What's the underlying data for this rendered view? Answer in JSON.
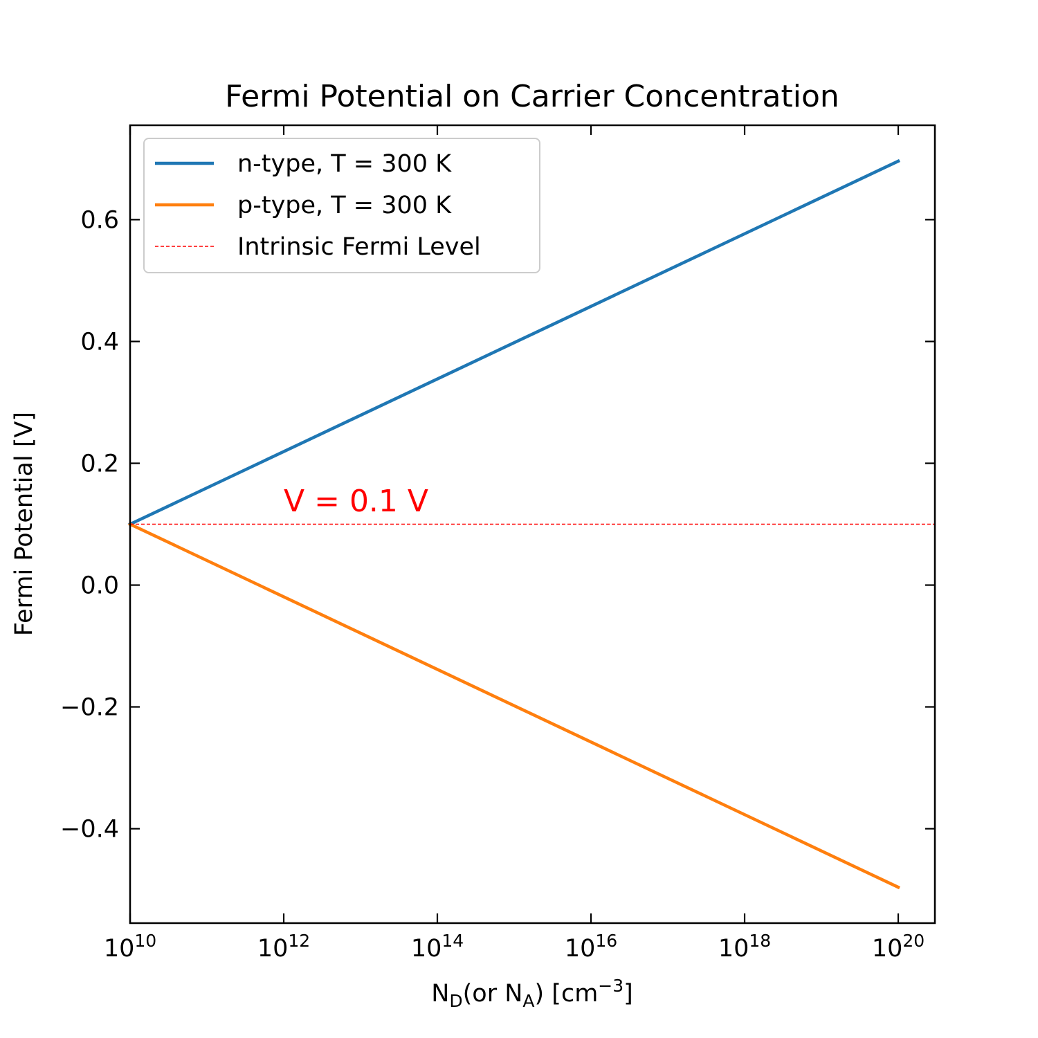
{
  "chart_data": {
    "type": "line",
    "title": "Fermi Potential on Carrier Concentration",
    "xlabel": {
      "parts": [
        {
          "text": "N",
          "sub": false
        },
        {
          "text": "D",
          "sub": true
        },
        {
          "text": "(or N",
          "sub": false
        },
        {
          "text": "A",
          "sub": true
        },
        {
          "text": ") [cm",
          "sub": false
        },
        {
          "text": "−3",
          "sup": true
        },
        {
          "text": "]",
          "sub": false
        }
      ]
    },
    "ylabel": "Fermi Potential [V]",
    "x_scale": "log",
    "xlim": [
      10000000000.0,
      3e+20
    ],
    "ylim": [
      -0.555,
      0.755
    ],
    "x_ticks": [
      {
        "base": "10",
        "exp": "10",
        "value": 10000000000.0
      },
      {
        "base": "10",
        "exp": "12",
        "value": 1000000000000.0
      },
      {
        "base": "10",
        "exp": "14",
        "value": 100000000000000.0
      },
      {
        "base": "10",
        "exp": "16",
        "value": 1e+16
      },
      {
        "base": "10",
        "exp": "18",
        "value": 1e+18
      },
      {
        "base": "10",
        "exp": "20",
        "value": 1e+20
      }
    ],
    "y_ticks": [
      {
        "label": "−0.4",
        "value": -0.4
      },
      {
        "label": "−0.2",
        "value": -0.2
      },
      {
        "label": "0.0",
        "value": 0.0
      },
      {
        "label": "0.2",
        "value": 0.2
      },
      {
        "label": "0.4",
        "value": 0.4
      },
      {
        "label": "0.6",
        "value": 0.6
      }
    ],
    "grid": false,
    "legend_position": "top-left",
    "series": [
      {
        "name": "n-type, T = 300 K",
        "color": "#1f77b4",
        "style": "solid",
        "x": [
          10000000000.0,
          1e+20
        ],
        "y": [
          0.1,
          0.696
        ]
      },
      {
        "name": "p-type, T = 300 K",
        "color": "#ff7f0e",
        "style": "solid",
        "x": [
          10000000000.0,
          1e+20
        ],
        "y": [
          0.1,
          -0.496
        ]
      },
      {
        "name": "Intrinsic Fermi Level",
        "color": "#ff0000",
        "style": "dashed",
        "y_const": 0.1
      }
    ],
    "annotation": {
      "text": "V  = 0.1 V",
      "x": 1000000000000.0,
      "y": 0.13,
      "color": "#ff0000"
    }
  }
}
